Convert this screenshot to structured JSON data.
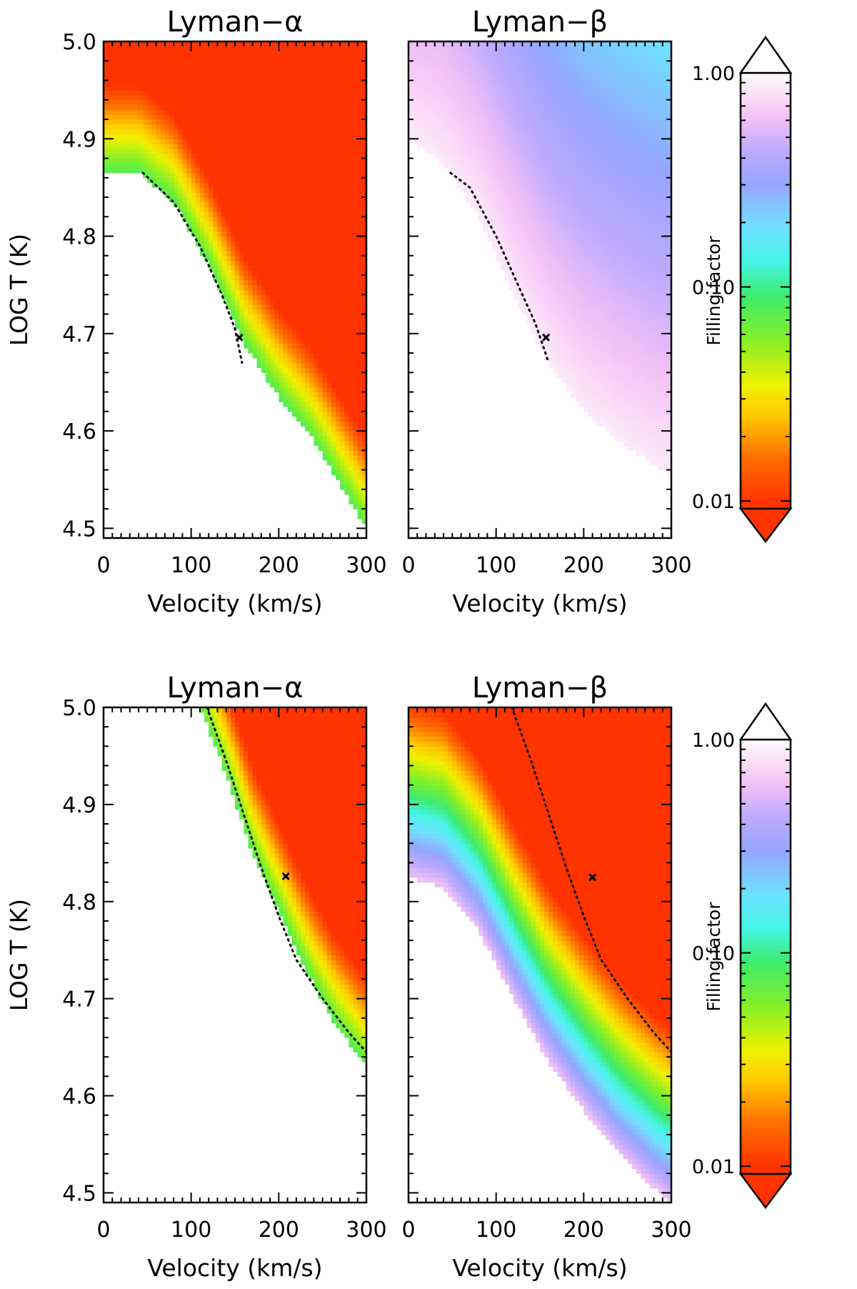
{
  "colorbar": {
    "title": "Filling factor",
    "tick_values": [
      0.01,
      0.1,
      1.0
    ],
    "tick_labels": [
      "0.01",
      "0.10",
      "1.00"
    ],
    "range": [
      0.0092,
      1.0
    ],
    "scale": "log",
    "over_color": "#ffffff",
    "under_color": "#ff3300"
  },
  "chart_data": [
    {
      "type": "heatmap",
      "row": 1,
      "col": 1,
      "line": "alpha",
      "title": "Lyman−α",
      "xlabel": "Velocity (km/s)",
      "ylabel": "LOG T (K)",
      "xlim": [
        0,
        300
      ],
      "ylim": [
        4.49,
        5.0
      ],
      "xticks": [
        "0",
        "100",
        "200",
        "300"
      ],
      "yticks": [
        "4.5",
        "4.6",
        "4.7",
        "4.8",
        "4.9",
        "5.0"
      ],
      "boundary": [
        [
          0,
          4.865
        ],
        [
          40,
          4.865
        ],
        [
          80,
          4.835
        ],
        [
          120,
          4.77
        ],
        [
          160,
          4.69
        ],
        [
          200,
          4.635
        ],
        [
          240,
          4.59
        ],
        [
          280,
          4.53
        ],
        [
          300,
          4.5
        ]
      ],
      "log_filling_factor_at_boundary": -1.1,
      "decades_per_kelvin_dex": 10,
      "dotted_curve": [
        [
          45,
          4.865
        ],
        [
          80,
          4.835
        ],
        [
          110,
          4.79
        ],
        [
          135,
          4.74
        ],
        [
          150,
          4.705
        ],
        [
          158,
          4.67
        ]
      ],
      "marker": {
        "velocity": 155,
        "log_t": 4.696
      }
    },
    {
      "type": "heatmap",
      "row": 1,
      "col": 2,
      "line": "beta",
      "title": "Lyman−β",
      "xlabel": "Velocity (km/s)",
      "ylabel": "",
      "xlim": [
        0,
        300
      ],
      "ylim": [
        4.49,
        5.0
      ],
      "xticks": [
        "0",
        "100",
        "200",
        "300"
      ],
      "yticks": [],
      "boundary": [
        [
          0,
          4.9
        ],
        [
          40,
          4.875
        ],
        [
          80,
          4.82
        ],
        [
          120,
          4.74
        ],
        [
          160,
          4.67
        ],
        [
          200,
          4.62
        ],
        [
          240,
          4.59
        ],
        [
          280,
          4.565
        ],
        [
          300,
          4.555
        ]
      ],
      "log_filling_factor_at_boundary": -0.06,
      "decades_per_kelvin_dex": 1.5,
      "dotted_curve": [
        [
          48,
          4.865
        ],
        [
          70,
          4.85
        ],
        [
          100,
          4.8
        ],
        [
          125,
          4.75
        ],
        [
          145,
          4.71
        ],
        [
          160,
          4.67
        ]
      ],
      "marker": {
        "velocity": 157,
        "log_t": 4.696
      }
    },
    {
      "type": "heatmap",
      "row": 2,
      "col": 1,
      "line": "alpha",
      "title": "Lyman−α",
      "xlabel": "Velocity (km/s)",
      "ylabel": "LOG T (K)",
      "xlim": [
        0,
        300
      ],
      "ylim": [
        4.49,
        5.0
      ],
      "xticks": [
        "0",
        "100",
        "200",
        "300"
      ],
      "yticks": [
        "4.5",
        "4.6",
        "4.7",
        "4.8",
        "4.9",
        "5.0"
      ],
      "boundary": [
        [
          110,
          5.0
        ],
        [
          140,
          4.93
        ],
        [
          170,
          4.85
        ],
        [
          200,
          4.79
        ],
        [
          230,
          4.73
        ],
        [
          260,
          4.68
        ],
        [
          300,
          4.63
        ]
      ],
      "log_filling_factor_at_boundary": -1.1,
      "decades_per_kelvin_dex": 10,
      "dotted_curve": [
        [
          118,
          5.0
        ],
        [
          140,
          4.945
        ],
        [
          160,
          4.89
        ],
        [
          180,
          4.835
        ],
        [
          200,
          4.785
        ],
        [
          220,
          4.74
        ],
        [
          250,
          4.7
        ],
        [
          280,
          4.665
        ],
        [
          300,
          4.645
        ]
      ],
      "marker": {
        "velocity": 208,
        "log_t": 4.826
      }
    },
    {
      "type": "heatmap",
      "row": 2,
      "col": 2,
      "line": "beta",
      "title": "Lyman−β",
      "xlabel": "Velocity (km/s)",
      "ylabel": "",
      "xlim": [
        0,
        300
      ],
      "ylim": [
        4.49,
        5.0
      ],
      "xticks": [
        "0",
        "100",
        "200",
        "300"
      ],
      "yticks": [],
      "boundary": [
        [
          0,
          4.825
        ],
        [
          40,
          4.815
        ],
        [
          80,
          4.77
        ],
        [
          120,
          4.7
        ],
        [
          160,
          4.635
        ],
        [
          200,
          4.585
        ],
        [
          240,
          4.54
        ],
        [
          280,
          4.505
        ],
        [
          300,
          4.49
        ]
      ],
      "log_filling_factor_at_boundary": -0.2,
      "decades_per_kelvin_dex": 10,
      "dotted_curve": [
        [
          118,
          5.0
        ],
        [
          140,
          4.945
        ],
        [
          160,
          4.89
        ],
        [
          180,
          4.835
        ],
        [
          200,
          4.785
        ],
        [
          220,
          4.74
        ],
        [
          250,
          4.7
        ],
        [
          280,
          4.665
        ],
        [
          300,
          4.645
        ]
      ],
      "marker": {
        "velocity": 210,
        "log_t": 4.825
      }
    }
  ]
}
